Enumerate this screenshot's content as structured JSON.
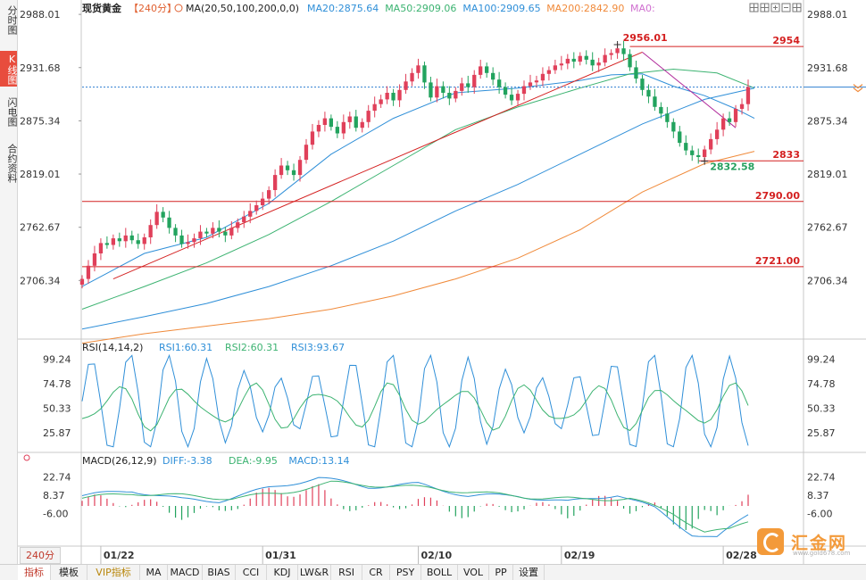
{
  "app": {
    "left_tabs": [
      {
        "label": "分时图",
        "active": false
      },
      {
        "label": "K线图",
        "active": true
      },
      {
        "label": "闪电图",
        "active": false
      },
      {
        "label": "合约资料",
        "active": false
      }
    ],
    "period_button": "240分",
    "bottom_tabs": [
      {
        "label": "指标",
        "active": true
      },
      {
        "label": "模板"
      },
      {
        "label": "VIP指标",
        "vip": true
      },
      {
        "label": "MA"
      },
      {
        "label": "MACD"
      },
      {
        "label": "BIAS"
      },
      {
        "label": "CCI"
      },
      {
        "label": "KDJ"
      },
      {
        "label": "LW&R"
      },
      {
        "label": "RSI"
      },
      {
        "label": "CR"
      },
      {
        "label": "PSY"
      },
      {
        "label": "BOLL"
      },
      {
        "label": "VOL"
      },
      {
        "label": "PP"
      },
      {
        "label": "设置"
      }
    ],
    "toolbar_icons": [
      "grid-icon",
      "arrange-icon",
      "zoom-in-icon",
      "zoom-out-icon",
      "restore-icon"
    ],
    "logo": {
      "name": "汇金网",
      "url": "www.gold678.com"
    }
  },
  "chart_data": [
    {
      "type": "candlestick",
      "pane": "price",
      "symbol": "现货黄金",
      "period": "【240分】",
      "ma_label": "MA(20,50,100,200,0,0)",
      "ma_values": [
        {
          "name": "MA20",
          "text": "MA20:2875.64",
          "color": "#2f8fd8"
        },
        {
          "name": "MA50",
          "text": "MA50:2909.06",
          "color": "#3cb371"
        },
        {
          "name": "MA100",
          "text": "MA100:2909.65",
          "color": "#2f8fd8"
        },
        {
          "name": "MA200",
          "text": "MA200:2842.90",
          "color": "#f08a3a"
        },
        {
          "name": "MA0",
          "text": "MA0:",
          "color": "#d070d0"
        }
      ],
      "y_ticks": [
        "2988.01",
        "2931.68",
        "2875.34",
        "2819.01",
        "2762.67",
        "2706.34"
      ],
      "ylim": [
        2650,
        2990
      ],
      "x_ticks": [
        {
          "label": "01/22",
          "i": 3
        },
        {
          "label": "01/31",
          "i": 29
        },
        {
          "label": "02/10",
          "i": 54
        },
        {
          "label": "02/19",
          "i": 77
        },
        {
          "label": "02/28",
          "i": 103
        }
      ],
      "bar_count": 108,
      "current_price": 2911,
      "levels": [
        {
          "label": "2954",
          "value": 2954,
          "start_i": 88,
          "color": "#d42020"
        },
        {
          "label": "2833",
          "value": 2833,
          "start_i": 99,
          "color": "#d42020"
        },
        {
          "label": "2790.00",
          "value": 2790,
          "start_i": 0,
          "color": "#d42020"
        },
        {
          "label": "2721.00",
          "value": 2721,
          "start_i": 0,
          "color": "#d42020"
        }
      ],
      "annotations": [
        {
          "label": "2956.01",
          "i": 86,
          "value": 2956.01,
          "color": "#d42020"
        },
        {
          "label": "2832.58",
          "i": 100,
          "value": 2832.58,
          "color": "#28a060"
        }
      ],
      "trend_lines": [
        {
          "from": [
            5,
            2708
          ],
          "to": [
            90,
            2948
          ],
          "color": "#d42020"
        },
        {
          "from": [
            90,
            2948
          ],
          "to": [
            105,
            2868
          ],
          "color": "#b0289a"
        }
      ],
      "closes": [
        2708,
        2722,
        2735,
        2746,
        2744,
        2751,
        2748,
        2754,
        2749,
        2745,
        2752,
        2765,
        2779,
        2773,
        2762,
        2754,
        2745,
        2747,
        2751,
        2758,
        2756,
        2762,
        2758,
        2754,
        2762,
        2768,
        2774,
        2780,
        2786,
        2793,
        2802,
        2818,
        2828,
        2823,
        2818,
        2834,
        2850,
        2864,
        2871,
        2878,
        2869,
        2862,
        2874,
        2880,
        2868,
        2874,
        2886,
        2893,
        2898,
        2905,
        2897,
        2908,
        2917,
        2926,
        2934,
        2916,
        2900,
        2912,
        2905,
        2899,
        2907,
        2915,
        2911,
        2924,
        2933,
        2926,
        2919,
        2911,
        2903,
        2897,
        2904,
        2912,
        2916,
        2918,
        2925,
        2929,
        2934,
        2936,
        2941,
        2938,
        2944,
        2940,
        2934,
        2937,
        2945,
        2947,
        2952,
        2946,
        2932,
        2920,
        2908,
        2901,
        2890,
        2883,
        2874,
        2864,
        2852,
        2844,
        2839,
        2837,
        2845,
        2856,
        2866,
        2878,
        2874,
        2888,
        2893,
        2911
      ],
      "ma_series": [
        {
          "name": "MA20",
          "color": "#2f8fd8",
          "points": [
            [
              0,
              2700
            ],
            [
              10,
              2735
            ],
            [
              20,
              2752
            ],
            [
              30,
              2788
            ],
            [
              40,
              2840
            ],
            [
              50,
              2878
            ],
            [
              60,
              2905
            ],
            [
              70,
              2910
            ],
            [
              80,
              2918
            ],
            [
              85,
              2924
            ],
            [
              90,
              2925
            ],
            [
              95,
              2912
            ],
            [
              100,
              2902
            ],
            [
              105,
              2888
            ],
            [
              108,
              2878
            ]
          ]
        },
        {
          "name": "MA50",
          "color": "#3cb371",
          "points": [
            [
              0,
              2676
            ],
            [
              10,
              2700
            ],
            [
              20,
              2725
            ],
            [
              30,
              2755
            ],
            [
              40,
              2790
            ],
            [
              50,
              2828
            ],
            [
              60,
              2866
            ],
            [
              70,
              2890
            ],
            [
              80,
              2910
            ],
            [
              88,
              2925
            ],
            [
              95,
              2930
            ],
            [
              102,
              2926
            ],
            [
              108,
              2910
            ]
          ]
        },
        {
          "name": "MA100",
          "color": "#2f8fd8",
          "points": [
            [
              0,
              2655
            ],
            [
              10,
              2668
            ],
            [
              20,
              2682
            ],
            [
              30,
              2700
            ],
            [
              40,
              2722
            ],
            [
              50,
              2748
            ],
            [
              60,
              2780
            ],
            [
              70,
              2808
            ],
            [
              80,
              2840
            ],
            [
              90,
              2872
            ],
            [
              100,
              2898
            ],
            [
              108,
              2910
            ]
          ]
        },
        {
          "name": "MA200",
          "color": "#f08a3a",
          "points": [
            [
              0,
              2640
            ],
            [
              10,
              2650
            ],
            [
              20,
              2658
            ],
            [
              30,
              2666
            ],
            [
              40,
              2676
            ],
            [
              50,
              2690
            ],
            [
              60,
              2708
            ],
            [
              70,
              2730
            ],
            [
              80,
              2760
            ],
            [
              90,
              2800
            ],
            [
              100,
              2830
            ],
            [
              108,
              2843
            ]
          ]
        }
      ]
    },
    {
      "type": "line",
      "pane": "rsi",
      "label": "RSI(14,14,2)",
      "legend": [
        {
          "text": "RSI1:60.31",
          "color": "#2f8fd8"
        },
        {
          "text": "RSI2:60.31",
          "color": "#3cb371"
        },
        {
          "text": "RSI3:93.67",
          "color": "#2f8fd8"
        }
      ],
      "y_ticks": [
        "99.24",
        "74.78",
        "50.33",
        "25.87"
      ],
      "ylim": [
        10,
        105
      ],
      "series": [
        {
          "name": "RSI3",
          "color": "#2f8fd8",
          "period": 6,
          "amp": 40,
          "mid": 55
        },
        {
          "name": "RSI1",
          "color": "#3cb371",
          "period": 11,
          "amp": 18,
          "mid": 52
        }
      ]
    },
    {
      "type": "bar+line",
      "pane": "macd",
      "label": "MACD(26,12,9)",
      "legend": [
        {
          "text": "DIFF:-3.38",
          "color": "#2f8fd8"
        },
        {
          "text": "DEA:-9.95",
          "color": "#3cb371"
        },
        {
          "text": "MACD:13.14",
          "color": "#2f8fd8"
        }
      ],
      "y_ticks": [
        "22.74",
        "8.37",
        "-6.00"
      ],
      "ylim": [
        -30,
        30
      ],
      "diff": [
        [
          0,
          8
        ],
        [
          8,
          12
        ],
        [
          16,
          5
        ],
        [
          22,
          4
        ],
        [
          30,
          14
        ],
        [
          38,
          22
        ],
        [
          46,
          15
        ],
        [
          54,
          17
        ],
        [
          62,
          8
        ],
        [
          70,
          8
        ],
        [
          78,
          3
        ],
        [
          86,
          9
        ],
        [
          92,
          -2
        ],
        [
          98,
          -22
        ],
        [
          102,
          -25
        ],
        [
          108,
          -3
        ]
      ],
      "dea": [
        [
          0,
          6
        ],
        [
          8,
          10
        ],
        [
          16,
          8
        ],
        [
          24,
          6
        ],
        [
          32,
          10
        ],
        [
          40,
          18
        ],
        [
          48,
          16
        ],
        [
          56,
          14
        ],
        [
          64,
          10
        ],
        [
          72,
          7
        ],
        [
          80,
          5
        ],
        [
          88,
          6
        ],
        [
          95,
          -6
        ],
        [
          100,
          -20
        ],
        [
          104,
          -19
        ],
        [
          108,
          -10
        ]
      ]
    }
  ]
}
